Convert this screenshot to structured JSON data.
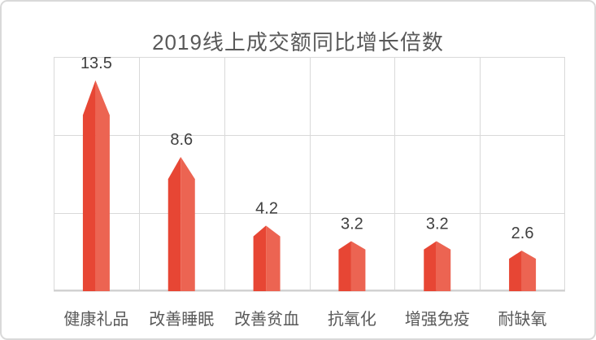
{
  "chart_data": {
    "type": "bar",
    "title": "2019线上成交额同比增长倍数",
    "categories": [
      "健康礼品",
      "改善睡眠",
      "改善贫血",
      "抗氧化",
      "增强免疫",
      "耐缺氧"
    ],
    "values": [
      13.5,
      8.6,
      4.2,
      3.2,
      3.2,
      2.6
    ],
    "data_labels": [
      "13.5",
      "8.6",
      "4.2",
      "3.2",
      "3.2",
      "2.6"
    ],
    "xlabel": "",
    "ylabel": "",
    "ylim": [
      0,
      15
    ],
    "gridline_step": 5,
    "grid": true,
    "legend_position": "none",
    "bar_style": "pointed-pentagon",
    "colors": {
      "bar_left_face": "#e74634",
      "bar_right_face": "#ec6452",
      "gridline": "#d9d9d9",
      "axis_line": "#d2d2d2",
      "title_text": "#595959",
      "data_label_text": "#3f3f3f",
      "category_label_text": "#595959",
      "border": "#d9d9d9",
      "background": "#ffffff"
    }
  }
}
